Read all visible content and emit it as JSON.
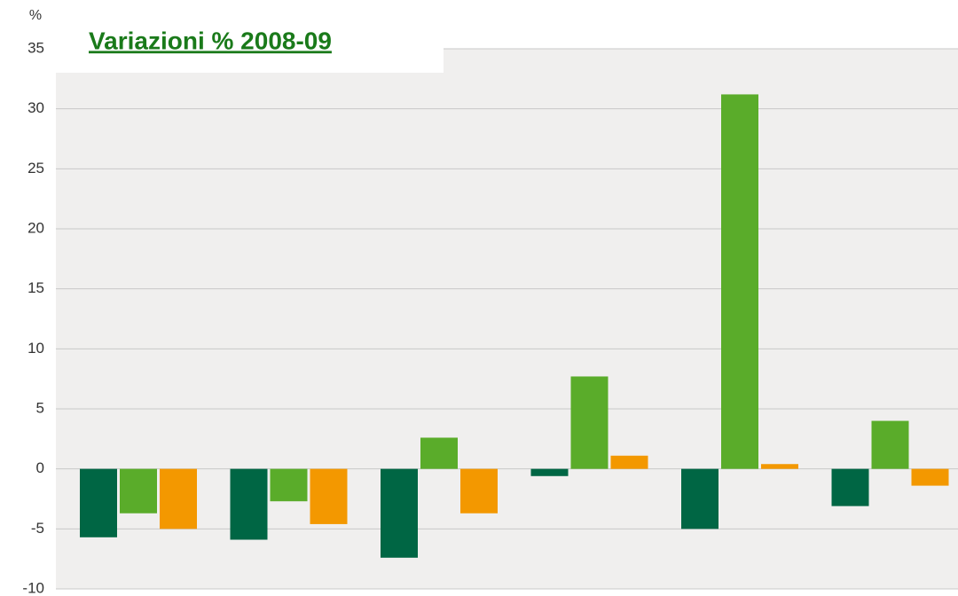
{
  "chart_data": {
    "type": "bar",
    "title": "Variazioni % 2008-09",
    "y_label": "%",
    "categories": [
      null,
      null,
      null,
      null,
      null,
      null
    ],
    "series": [
      {
        "color": "#006644",
        "values": [
          -5.7,
          -5.9,
          -7.4,
          -0.6,
          -5.0,
          -3.1
        ]
      },
      {
        "color": "#5aac2a",
        "values": [
          -3.7,
          -2.7,
          2.6,
          7.7,
          31.2,
          4.0
        ]
      },
      {
        "color": "#f39800",
        "values": [
          -5.0,
          -4.6,
          -3.7,
          1.1,
          0.4,
          -1.4
        ]
      }
    ],
    "ylim": [
      -10,
      35
    ],
    "yticks": [
      -10,
      -5,
      0,
      5,
      10,
      15,
      20,
      25,
      30,
      35
    ],
    "grid": true
  }
}
